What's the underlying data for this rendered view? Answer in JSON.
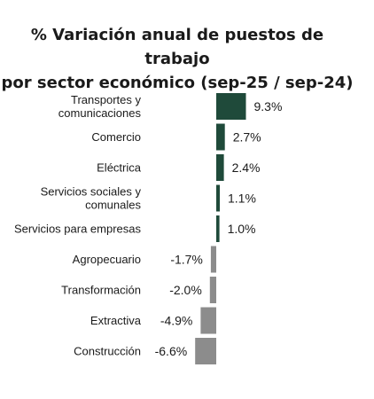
{
  "chart_data": {
    "type": "bar",
    "orientation": "horizontal",
    "title": "% Variación anual de puestos de trabajo por sector económico (sep-25 / sep-24)",
    "title_lines": [
      "% Variación anual de puestos de trabajo",
      "por sector económico (sep-25 / sep-24)"
    ],
    "categories": [
      "Transportes y comunicaciones",
      "Comercio",
      "Eléctrica",
      "Servicios sociales y comunales",
      "Servicios para empresas",
      "Agropecuario",
      "Transformación",
      "Extractiva",
      "Construcción"
    ],
    "category_lines": [
      [
        "Transportes y",
        "comunicaciones"
      ],
      [
        "Comercio"
      ],
      [
        "Eléctrica"
      ],
      [
        "Servicios sociales y",
        "comunales"
      ],
      [
        "Servicios para empresas"
      ],
      [
        "Agropecuario"
      ],
      [
        "Transformación"
      ],
      [
        "Extractiva"
      ],
      [
        "Construcción"
      ]
    ],
    "values": [
      9.3,
      2.7,
      2.4,
      1.1,
      1.0,
      -1.7,
      -2.0,
      -4.9,
      -6.6
    ],
    "value_labels": [
      "9.3%",
      "2.7%",
      "2.4%",
      "1.1%",
      "1.0%",
      "-1.7%",
      "-2.0%",
      "-4.9%",
      "-6.6%"
    ],
    "colors": {
      "positive": "#1f4a3a",
      "negative": "#8c8c8c"
    },
    "grid": false,
    "legend": "none"
  }
}
